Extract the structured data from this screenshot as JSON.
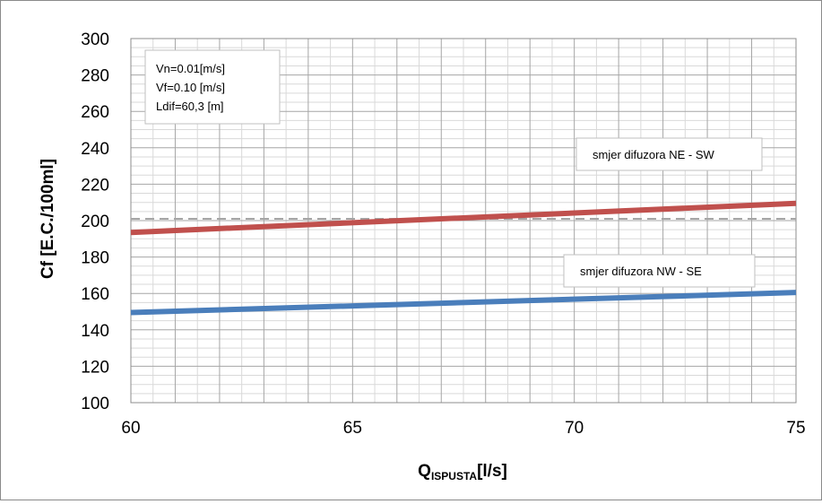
{
  "chart_data": {
    "type": "line",
    "xlabel_main": "Q",
    "xlabel_sub": "ISPUSTA",
    "xlabel_unit": "[l/s]",
    "ylabel": "Cf [E.C./100ml]",
    "xlim": [
      60,
      75
    ],
    "ylim": [
      100,
      300
    ],
    "x_ticks": [
      "60",
      "65",
      "70",
      "75"
    ],
    "y_ticks": [
      "100",
      "120",
      "140",
      "160",
      "180",
      "200",
      "220",
      "240",
      "260",
      "280",
      "300"
    ],
    "grid": true,
    "params": [
      "Vn=0.01[m/s]",
      "Vf=0.10 [m/s]",
      "Ldif=60,3 [m]"
    ],
    "series": [
      {
        "name": "smjer difuzora  NE - SW",
        "color": "#c0504d",
        "x": [
          60,
          75
        ],
        "y": [
          193.5,
          209.5
        ]
      },
      {
        "name": "smjer difuzora  NW - SE",
        "color": "#4a7ebb",
        "x": [
          60,
          75
        ],
        "y": [
          149.5,
          160.5
        ]
      }
    ],
    "reference_line": {
      "y": 201,
      "color": "#a6a6a6",
      "style": "dashed"
    }
  }
}
